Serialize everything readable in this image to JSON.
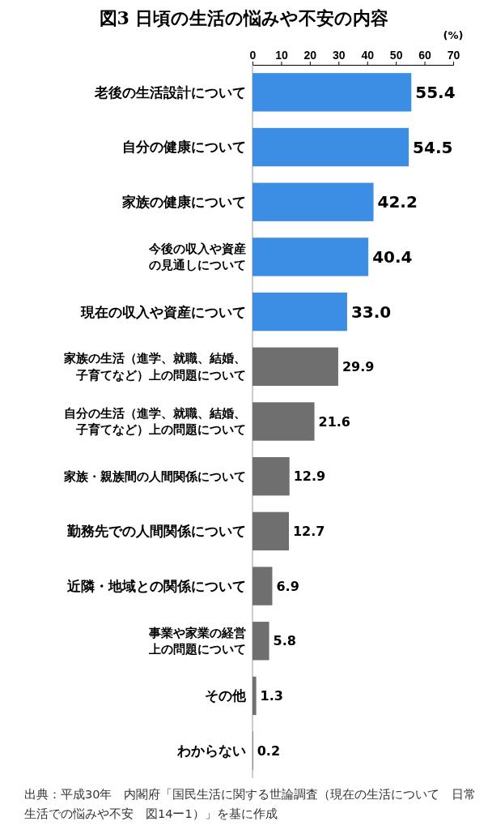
{
  "chart_data": {
    "type": "bar",
    "orientation": "horizontal",
    "title": "図3 日頃の生活の悩みや不安の内容",
    "xlabel": "(%)",
    "categories": [
      "老後の生活設計について",
      "自分の健康について",
      "家族の健康について",
      "今後の収入や資産の見通しについて",
      "現在の収入や資産について",
      "家族の生活（進学、就職、結婚、子育てなど）上の問題について",
      "自分の生活（進学、就職、結婚、子育てなど）上の問題について",
      "家族・親族間の人間関係について",
      "勤務先での人間関係について",
      "近隣・地域との関係について",
      "事業や家業の経営上の問題について",
      "その他",
      "わからない"
    ],
    "values": [
      55.4,
      54.5,
      42.2,
      40.4,
      33.0,
      29.9,
      21.6,
      12.9,
      12.7,
      6.9,
      5.8,
      1.3,
      0.2
    ],
    "value_labels": [
      "55.4",
      "54.5",
      "42.2",
      "40.4",
      "33.0",
      "29.9",
      "21.6",
      "12.9",
      "12.7",
      "6.9",
      "5.8",
      "1.3",
      "0.2"
    ],
    "colors": [
      "#3b8ee3",
      "#3b8ee3",
      "#3b8ee3",
      "#3b8ee3",
      "#3b8ee3",
      "#6f6f6f",
      "#6f6f6f",
      "#6f6f6f",
      "#6f6f6f",
      "#6f6f6f",
      "#6f6f6f",
      "#6f6f6f",
      "#6f6f6f"
    ],
    "xlim": [
      0,
      70
    ],
    "xticks": [
      0,
      10,
      20,
      30,
      40,
      50,
      60,
      70
    ],
    "annotations": [
      "出典：平成30年　内閣府「国民生活に関する世論調査（現在の生活について　日常生活での悩みや不安　図14ー1）」を基に作成"
    ]
  }
}
